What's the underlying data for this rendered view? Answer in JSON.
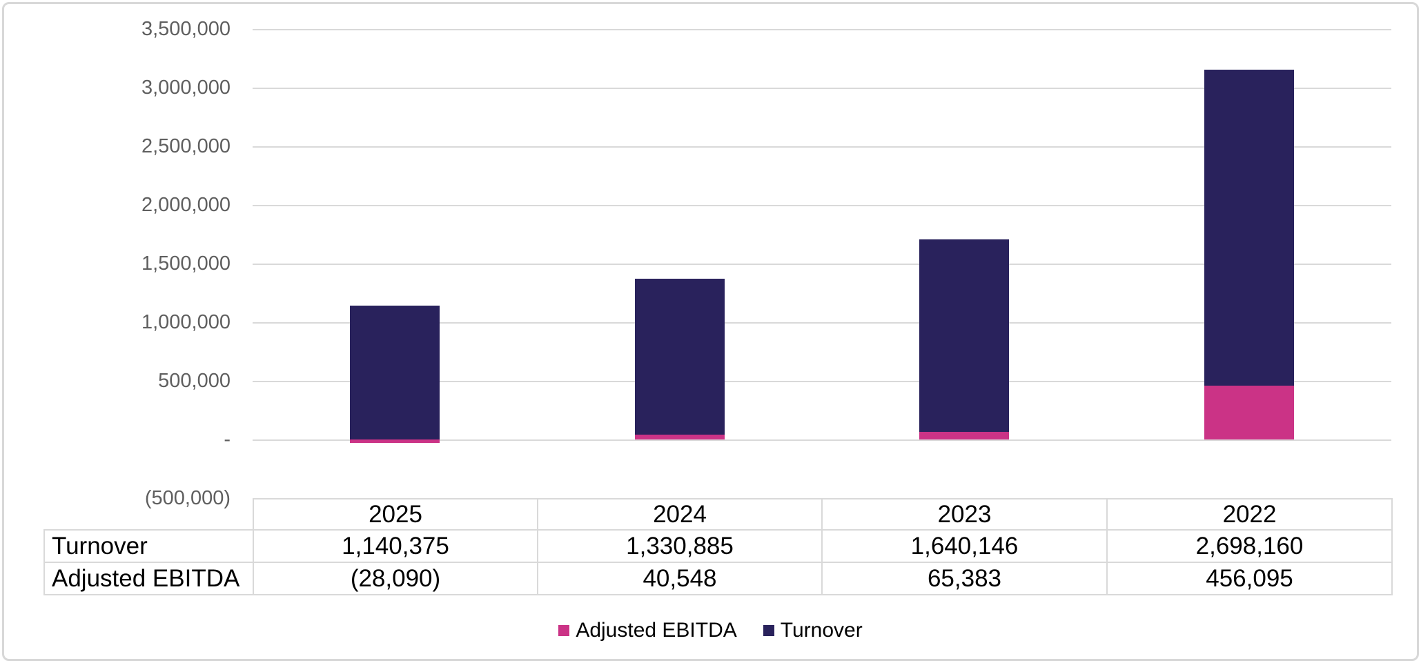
{
  "page": {
    "background": "#FFFFFF",
    "border_color": "#D8D8D8"
  },
  "chart_data": {
    "type": "bar",
    "subtype": "stacked-column-with-data-table",
    "title": "",
    "xlabel": "",
    "ylabel": "",
    "categories": [
      "2025",
      "2024",
      "2023",
      "2022"
    ],
    "series": [
      {
        "name": "Adjusted EBITDA",
        "color": "#CB3386",
        "values": [
          -28090,
          40548,
          65383,
          456095
        ],
        "labels": [
          "(28,090)",
          "40,548",
          "65,383",
          "456,095"
        ]
      },
      {
        "name": "Turnover",
        "color": "#29225C",
        "values": [
          1140375,
          1330885,
          1640146,
          2698160
        ],
        "labels": [
          "1,140,375",
          "1,330,885",
          "1,640,146",
          "2,698,160"
        ]
      }
    ],
    "stack_order_bottom_to_top": [
      "Adjusted EBITDA",
      "Turnover"
    ],
    "y_axis": {
      "min": -500000,
      "max": 3500000,
      "step": 500000,
      "tick_labels": [
        "3,500,000",
        "3,000,000",
        "2,500,000",
        "2,000,000",
        "1,500,000",
        "1,000,000",
        "500,000",
        "-",
        "(500,000)"
      ],
      "label_color": "#5F5F5F",
      "gridline_color": "#D9D9D9",
      "grid": true
    },
    "legend": {
      "position": "bottom-center",
      "items": [
        {
          "label": "Adjusted EBITDA",
          "color": "#CB3386"
        },
        {
          "label": "Turnover",
          "color": "#29225C"
        }
      ]
    },
    "data_table": {
      "header": [
        "2025",
        "2024",
        "2023",
        "2022"
      ],
      "rows": [
        {
          "label": "Turnover",
          "cells": [
            "1,140,375",
            "1,330,885",
            "1,640,146",
            "2,698,160"
          ]
        },
        {
          "label": "Adjusted EBITDA",
          "cells": [
            "(28,090)",
            "40,548",
            "65,383",
            "456,095"
          ]
        }
      ]
    }
  }
}
